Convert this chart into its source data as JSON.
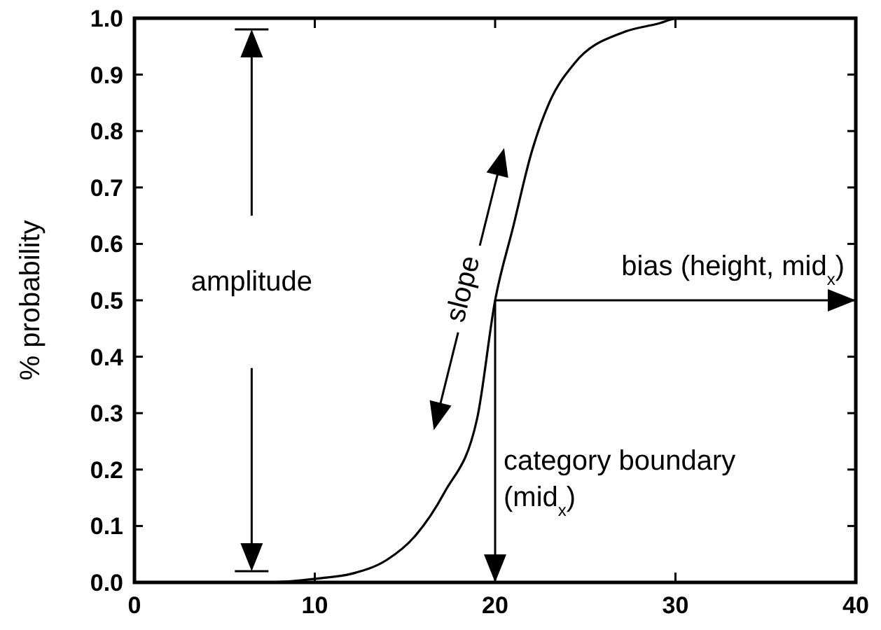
{
  "chart_data": {
    "type": "line",
    "ylabel": "% probability",
    "x": [
      0,
      7.3,
      10.2,
      12,
      14,
      15.5,
      17.2,
      19,
      20,
      21,
      22,
      23,
      24.4,
      27.1,
      29,
      30.2,
      35,
      40
    ],
    "series": [
      {
        "color": "#000000",
        "values": [
          0,
          0,
          0.007,
          0.015,
          0.04,
          0.08,
          0.16,
          0.29,
          0.5,
          0.63,
          0.76,
          0.85,
          0.92,
          0.975,
          0.99,
          1.0,
          1.0,
          1.0
        ]
      }
    ],
    "xlim": [
      0,
      40
    ],
    "ylim": [
      0,
      1
    ],
    "xticks": [
      0,
      10,
      20,
      30,
      40
    ],
    "yticks": [
      {
        "value": 0,
        "label": "0.0"
      },
      {
        "value": 0.1,
        "label": "0.1"
      },
      {
        "value": 0.2,
        "label": "0.2"
      },
      {
        "value": 0.3,
        "label": "0.3"
      },
      {
        "value": 0.4,
        "label": "0.4"
      },
      {
        "value": 0.5,
        "label": "0.5"
      },
      {
        "value": 0.6,
        "label": "0.6"
      },
      {
        "value": 0.7,
        "label": "0.7"
      },
      {
        "value": 0.8,
        "label": "0.8"
      },
      {
        "value": 0.9,
        "label": "0.9"
      },
      {
        "value": 1,
        "label": "1.0"
      }
    ],
    "annotations": [
      "amplitude",
      "slope",
      "bias (height, mid$_{x}$)",
      "category boundary (mid$_{x}$)"
    ],
    "grid": false,
    "marker": "none",
    "line_style": "solid"
  }
}
